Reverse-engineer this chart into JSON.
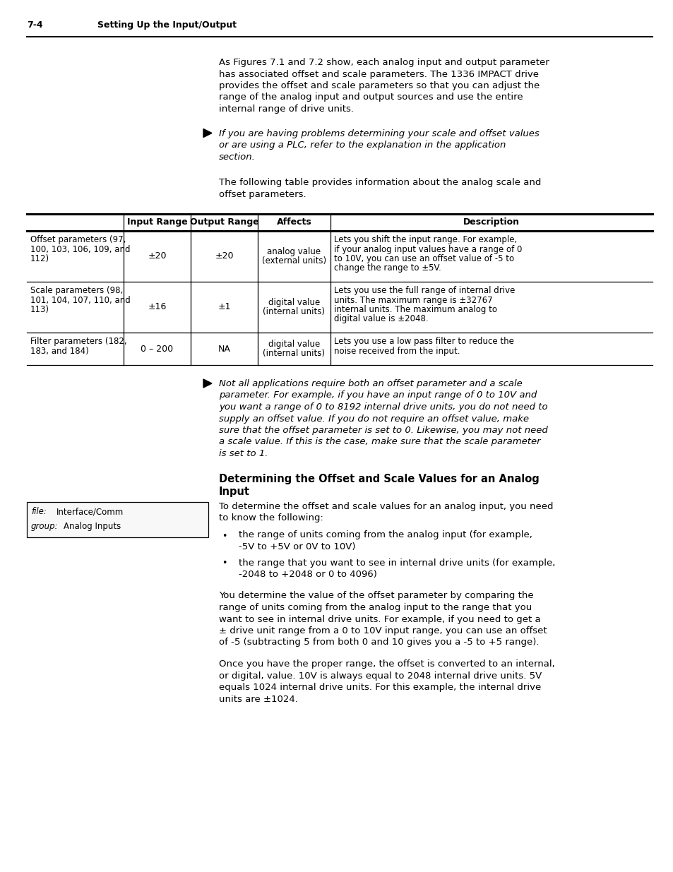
{
  "page_header_left": "7-4",
  "page_header_right": "Setting Up the Input/Output",
  "body_text_1": "As Figures 7.1 and 7.2 show, each analog input and output parameter\nhas associated offset and scale parameters. The 1336 IMPACT drive\nprovides the offset and scale parameters so that you can adjust the\nrange of the analog input and output sources and use the entire\ninternal range of drive units.",
  "note_1": "If you are having problems determining your scale and offset values\nor are using a PLC, refer to the explanation in the application\nsection.",
  "body_text_2": "The following table provides information about the analog scale and\noffset parameters.",
  "table_headers": [
    "",
    "Input Range",
    "Output Range",
    "Affects",
    "Description"
  ],
  "table_rows": [
    {
      "param": "Offset parameters (97,\n100, 103, 106, 109, and\n112)",
      "input": "±20",
      "output": "±20",
      "affects": "analog value\n(external units)",
      "description": "Lets you shift the input range. For example,\nif your analog input values have a range of 0\nto 10V, you can use an offset value of -5 to\nchange the range to ±5V."
    },
    {
      "param": "Scale parameters (98,\n101, 104, 107, 110, and\n113)",
      "input": "±16",
      "output": "±1",
      "affects": "digital value\n(internal units)",
      "description": "Lets you use the full range of internal drive\nunits. The maximum range is ±32767\ninternal units. The maximum analog to\ndigital value is ±2048."
    },
    {
      "param": "Filter parameters (182,\n183, and 184)",
      "input": "0 – 200",
      "output": "NA",
      "affects": "digital value\n(internal units)",
      "description": "Lets you use a low pass filter to reduce the\nnoise received from the input."
    }
  ],
  "note_2": "Not all applications require both an offset parameter and a scale\nparameter. For example, if you have an input range of 0 to 10V and\nyou want a range of 0 to 8192 internal drive units, you do not need to\nsupply an offset value. If you do not require an offset value, make\nsure that the offset parameter is set to 0. Likewise, you may not need\na scale value. If this is the case, make sure that the scale parameter\nis set to 1.",
  "section_title_1": "Determining the Offset and Scale Values for an Analog",
  "section_title_2": "Input",
  "sidebar_file": "Interface/Comm",
  "sidebar_group": "Analog Inputs",
  "body_text_3": "To determine the offset and scale values for an analog input, you need\nto know the following:",
  "bullet_1_line1": "the range of units coming from the analog input (for example,",
  "bullet_1_line2": "-5V to +5V or 0V to 10V)",
  "bullet_2_line1": "the range that you want to see in internal drive units (for example,",
  "bullet_2_line2": "-2048 to +2048 or 0 to 4096)",
  "body_text_4": "You determine the value of the offset parameter by comparing the\nrange of units coming from the analog input to the range that you\nwant to see in internal drive units. For example, if you need to get a\n± drive unit range from a 0 to 10V input range, you can use an offset\nof -5 (subtracting 5 from both 0 and 10 gives you a -5 to +5 range).",
  "body_text_5": "Once you have the proper range, the offset is converted to an internal,\nor digital, value. 10V is always equal to 2048 internal drive units. 5V\nequals 1024 internal drive units. For this example, the internal drive\nunits are ±1024.",
  "bg_color": "#ffffff",
  "text_color": "#000000"
}
